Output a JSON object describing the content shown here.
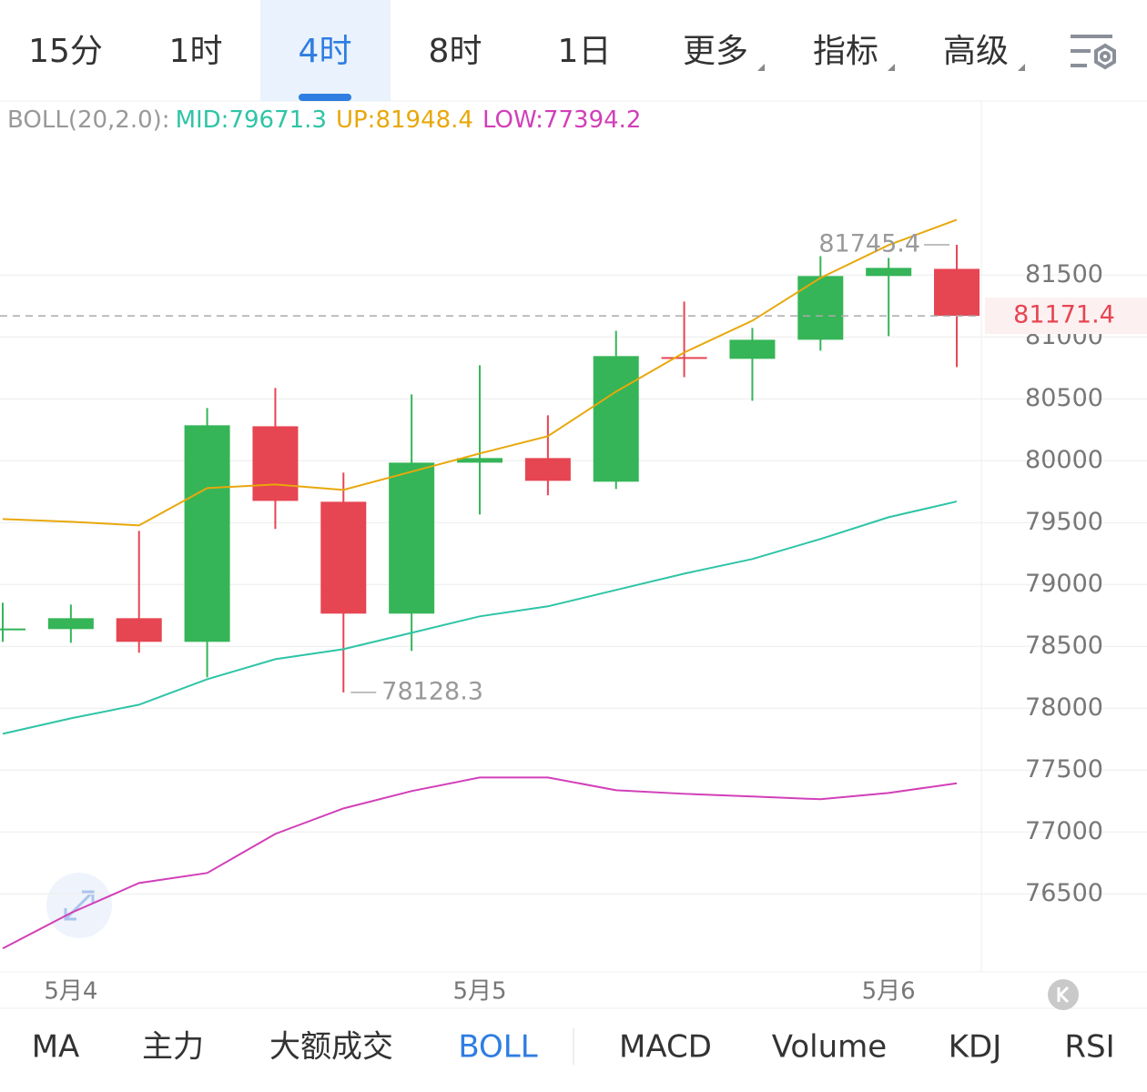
{
  "top_tabs": [
    "15分",
    "1时",
    "4时",
    "8时",
    "1日",
    "更多",
    "指标",
    "高级"
  ],
  "top_tab_selected": 2,
  "top_tab_dropdowns": [
    false,
    false,
    false,
    false,
    false,
    true,
    true,
    true
  ],
  "indicator_tabs": [
    "MA",
    "主力",
    "大额成交",
    "BOLL",
    "MACD",
    "Volume",
    "KDJ",
    "RSI"
  ],
  "indicator_tab_selected": 3,
  "chart_data": {
    "type": "candlestick",
    "indicator": "BOLL(20,2.0):",
    "categories": [
      null,
      "5月4",
      null,
      null,
      null,
      null,
      null,
      "5月5",
      null,
      null,
      null,
      null,
      null,
      "5月6",
      null
    ],
    "open": [
      78630,
      78640,
      78728,
      78537,
      80279,
      79669,
      78765,
      79985,
      80022,
      79831,
      80838,
      80824,
      80978,
      81493,
      81551
    ],
    "high": [
      78853,
      78838,
      79434,
      80426,
      80588,
      79904,
      80537,
      80772,
      80368,
      81051,
      81287,
      81074,
      81654,
      81640,
      81745.4
    ],
    "low": [
      78537,
      78529,
      78449,
      78250,
      79449,
      78128.3,
      78463,
      79566,
      79721,
      79772,
      80676,
      80485,
      80890,
      81007,
      80757
    ],
    "close": [
      78645,
      78728,
      78537,
      80287,
      79676,
      78765,
      79985,
      80022,
      79838,
      80846,
      80824,
      80978,
      81493,
      81559,
      81171.4
    ],
    "up_color": "#35b557",
    "down_color": "#e64552",
    "series": [
      {
        "name": "MID:79671.3",
        "color": "#2ec4a6",
        "values": [
          77794,
          77919,
          78029,
          78235,
          78397,
          78478,
          78610,
          78743,
          78824,
          78956,
          79088,
          79206,
          79368,
          79544,
          79671.3
        ]
      },
      {
        "name": "UP:81948.4",
        "color": "#e8a80c",
        "values": [
          79529,
          79507,
          79478,
          79779,
          79809,
          79765,
          79912,
          80059,
          80199,
          80559,
          80875,
          81132,
          81478,
          81743,
          81948.4
        ]
      },
      {
        "name": "LOW:77394.2",
        "color": "#d23fb8",
        "values": [
          76059,
          76346,
          76588,
          76669,
          76985,
          77191,
          77331,
          77441,
          77441,
          77338,
          77309,
          77287,
          77265,
          77316,
          77394.2
        ]
      }
    ],
    "ylim": [
      75870,
      82900
    ],
    "yticks": [
      76500,
      77000,
      77500,
      78000,
      78500,
      79000,
      79500,
      80000,
      80500,
      81000,
      81500
    ],
    "grid": true,
    "last_price_line": true,
    "max_label_index": 14,
    "min_label_index": 5
  }
}
